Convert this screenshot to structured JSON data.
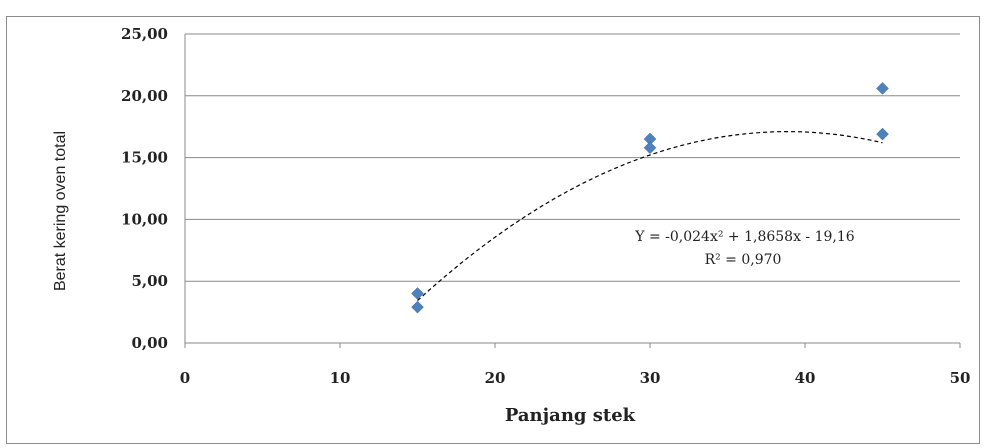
{
  "chart_data": {
    "type": "scatter",
    "xlabel": "Panjang stek",
    "ylabel": "Berat kering oven total",
    "xlim": [
      0,
      50
    ],
    "ylim": [
      0,
      25
    ],
    "x_ticks": [
      "0",
      "10",
      "20",
      "30",
      "40",
      "50"
    ],
    "y_ticks": [
      "0,00",
      "5,00",
      "10,00",
      "15,00",
      "20,00",
      "25,00"
    ],
    "grid": "horizontal",
    "series": [
      {
        "points": [
          {
            "x": 15,
            "y": 4.0
          },
          {
            "x": 15,
            "y": 2.9
          },
          {
            "x": 30,
            "y": 16.5
          },
          {
            "x": 30,
            "y": 15.8
          },
          {
            "x": 45,
            "y": 20.6
          },
          {
            "x": 45,
            "y": 16.9
          }
        ],
        "color": "#4f81bd"
      }
    ],
    "trendline": {
      "type": "polynomial",
      "coefficients": {
        "a": -0.024,
        "b": 1.8658,
        "c": -19.16
      },
      "x_range": [
        15,
        45
      ],
      "equation_text": "Y = -0,024x² + 1,8658x - 19,16",
      "r2_text": "R² = 0,970"
    }
  }
}
